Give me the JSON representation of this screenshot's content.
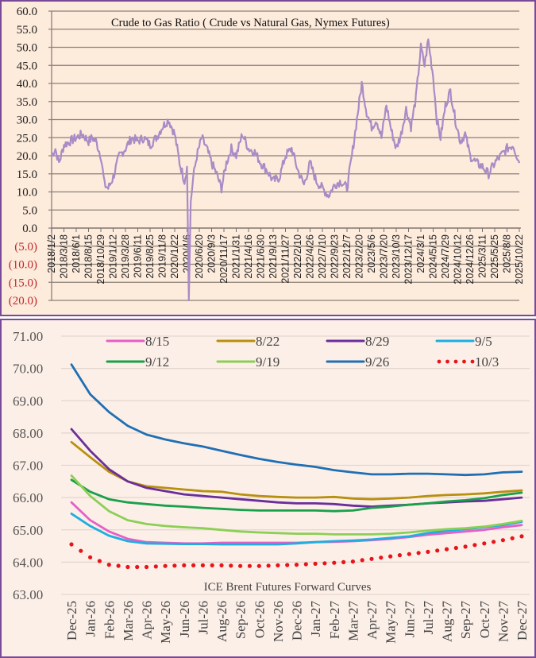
{
  "chart_data": [
    {
      "type": "line",
      "title": "Crude to Gas Ratio ( Crude vs Natural Gas, Nymex Futures)",
      "xlabel": "",
      "ylabel": "",
      "ylim": [
        -20,
        60
      ],
      "grid": true,
      "y_ticks": [
        "60.0",
        "55.0",
        "50.0",
        "45.0",
        "40.0",
        "35.0",
        "30.0",
        "25.0",
        "20.0",
        "15.0",
        "10.0",
        "5.0",
        "0.0",
        "(5.0)",
        "(10.0)",
        "(15.0)",
        "(20.0)"
      ],
      "y_tick_values": [
        60,
        55,
        50,
        45,
        40,
        35,
        30,
        25,
        20,
        15,
        10,
        5,
        0,
        -5,
        -10,
        -15,
        -20
      ],
      "negative_tick_color": "#c0282a",
      "x_ticks": [
        "2018/1/2",
        "2018/3/18",
        "2018/6/1",
        "2018/8/15",
        "2018/10/29",
        "2019/1/12",
        "2019/3/28",
        "2019/6/11",
        "2019/8/25",
        "2019/11/8",
        "2020/1/22",
        "2020/4/6",
        "2020/6/20",
        "2020/9/3",
        "2020/11/17",
        "2021/1/31",
        "2021/4/16",
        "2021/6/30",
        "2021/9/13",
        "2021/11/27",
        "2022/2/10",
        "2022/4/26",
        "2022/7/10",
        "2022/9/23",
        "2022/12/7",
        "2023/2/20",
        "2023/5/6",
        "2023/7/20",
        "2023/10/3",
        "2023/12/17",
        "2024/3/1",
        "2024/5/15",
        "2024/7/29",
        "2024/10/12",
        "2024/12/26",
        "2025/3/11",
        "2025/5/25",
        "2025/8/8",
        "2025/10/22"
      ],
      "series": [
        {
          "name": "Crude to Gas Ratio",
          "color": "#a98bc6",
          "x_index": [
            0,
            0.3,
            0.6,
            1,
            1.5,
            2,
            2.5,
            3,
            3.3,
            3.6,
            4,
            4.3,
            4.6,
            5,
            5.5,
            6,
            6.5,
            7,
            7.5,
            8,
            8.5,
            9,
            9.5,
            10,
            10.4,
            10.8,
            11,
            11.15,
            11.3,
            11.5,
            11.8,
            12.2,
            12.6,
            13,
            13.4,
            13.8,
            14.2,
            14.6,
            15,
            15.5,
            16,
            16.5,
            17,
            17.5,
            18,
            18.5,
            19,
            19.5,
            20,
            20.5,
            21,
            21.5,
            22,
            22.5,
            23,
            23.5,
            24,
            24.4,
            24.8,
            25.2,
            25.6,
            26,
            26.4,
            26.8,
            27.2,
            27.6,
            28,
            28.4,
            28.8,
            29.2,
            29.6,
            30,
            30.3,
            30.6,
            31,
            31.3,
            31.6,
            32,
            32.4,
            32.8,
            33.2,
            33.6,
            34,
            34.5,
            35,
            35.5,
            36,
            36.5,
            37,
            37.5,
            38
          ],
          "values": [
            20,
            22,
            18,
            23,
            24,
            25,
            26,
            24,
            25,
            24,
            20,
            12,
            11,
            14,
            20,
            22,
            25,
            24,
            25,
            23,
            25,
            28,
            30,
            26,
            18,
            13,
            17,
            -20,
            7,
            14,
            20,
            25,
            22,
            18,
            15,
            11,
            18,
            22,
            20,
            26,
            22,
            21,
            18,
            16,
            13,
            14,
            20,
            22,
            16,
            12,
            18,
            13,
            11,
            9,
            12,
            13,
            11,
            20,
            30,
            40,
            32,
            28,
            30,
            25,
            34,
            27,
            22,
            26,
            33,
            28,
            36,
            50,
            45,
            52,
            42,
            30,
            25,
            34,
            38,
            30,
            24,
            26,
            20,
            18,
            17,
            15,
            18,
            20,
            22,
            23,
            18
          ]
        }
      ]
    },
    {
      "type": "line",
      "title": "ICE Brent Futures Forward Curves",
      "xlabel": "",
      "ylabel": "",
      "ylim": [
        63,
        71
      ],
      "grid": true,
      "legend": "top",
      "y_ticks": [
        "71.00",
        "70.00",
        "69.00",
        "68.00",
        "67.00",
        "66.00",
        "65.00",
        "64.00",
        "63.00"
      ],
      "y_tick_values": [
        71,
        70,
        69,
        68,
        67,
        66,
        65,
        64,
        63
      ],
      "categories": [
        "Dec-25",
        "Jan-26",
        "Feb-26",
        "Mar-26",
        "Apr-26",
        "May-26",
        "Jun-26",
        "Jul-26",
        "Aug-26",
        "Sep-26",
        "Oct-26",
        "Nov-26",
        "Dec-26",
        "Jan-27",
        "Feb-27",
        "Mar-27",
        "Apr-27",
        "May-27",
        "Jun-27",
        "Jul-27",
        "Aug-27",
        "Sep-27",
        "Oct-27",
        "Nov-27",
        "Dec-27"
      ],
      "series": [
        {
          "name": "8/15",
          "color": "#e55fc8",
          "style": "solid",
          "values": [
            65.85,
            65.3,
            64.95,
            64.72,
            64.62,
            64.6,
            64.58,
            64.58,
            64.6,
            64.6,
            64.6,
            64.6,
            64.6,
            64.62,
            64.63,
            64.65,
            64.68,
            64.72,
            64.78,
            64.85,
            64.9,
            64.95,
            65.0,
            65.08,
            65.15
          ]
        },
        {
          "name": "8/22",
          "color": "#b8900f",
          "style": "solid",
          "values": [
            67.72,
            67.25,
            66.8,
            66.5,
            66.35,
            66.3,
            66.25,
            66.2,
            66.18,
            66.1,
            66.05,
            66.02,
            66.0,
            66.0,
            66.02,
            65.97,
            65.95,
            65.97,
            66.0,
            66.05,
            66.08,
            66.1,
            66.13,
            66.18,
            66.22
          ]
        },
        {
          "name": "8/29",
          "color": "#6a2e9a",
          "style": "solid",
          "values": [
            68.12,
            67.45,
            66.88,
            66.5,
            66.3,
            66.2,
            66.1,
            66.05,
            66.0,
            65.95,
            65.9,
            65.85,
            65.82,
            65.82,
            65.8,
            65.75,
            65.72,
            65.75,
            65.78,
            65.82,
            65.85,
            65.88,
            65.9,
            65.95,
            66.0
          ]
        },
        {
          "name": "9/5",
          "color": "#1eaee0",
          "style": "solid",
          "values": [
            65.5,
            65.12,
            64.82,
            64.65,
            64.58,
            64.57,
            64.56,
            64.56,
            64.55,
            64.55,
            64.55,
            64.55,
            64.58,
            64.62,
            64.65,
            64.67,
            64.7,
            64.75,
            64.8,
            64.9,
            64.97,
            65.02,
            65.08,
            65.15,
            65.25
          ]
        },
        {
          "name": "9/12",
          "color": "#19a04a",
          "style": "solid",
          "values": [
            66.55,
            66.18,
            65.95,
            65.85,
            65.8,
            65.75,
            65.72,
            65.68,
            65.65,
            65.62,
            65.6,
            65.6,
            65.6,
            65.6,
            65.58,
            65.6,
            65.68,
            65.72,
            65.78,
            65.82,
            65.88,
            65.92,
            65.98,
            66.08,
            66.15
          ]
        },
        {
          "name": "9/19",
          "color": "#8ccf55",
          "style": "solid",
          "values": [
            66.68,
            66.05,
            65.58,
            65.3,
            65.18,
            65.12,
            65.08,
            65.05,
            65.0,
            64.95,
            64.92,
            64.9,
            64.88,
            64.88,
            64.86,
            64.86,
            64.86,
            64.88,
            64.92,
            64.98,
            65.02,
            65.05,
            65.1,
            65.18,
            65.28
          ]
        },
        {
          "name": "9/26",
          "color": "#1f6fb4",
          "style": "solid",
          "values": [
            70.12,
            69.2,
            68.65,
            68.22,
            67.95,
            67.8,
            67.68,
            67.58,
            67.45,
            67.32,
            67.2,
            67.1,
            67.02,
            66.95,
            66.85,
            66.78,
            66.72,
            66.72,
            66.74,
            66.74,
            66.72,
            66.7,
            66.72,
            66.78,
            66.8
          ]
        },
        {
          "name": "10/3",
          "color": "#e8141a",
          "style": "dotted",
          "values": [
            64.55,
            64.15,
            63.92,
            63.85,
            63.85,
            63.88,
            63.9,
            63.9,
            63.9,
            63.88,
            63.88,
            63.9,
            63.92,
            63.95,
            63.98,
            64.02,
            64.1,
            64.18,
            64.25,
            64.32,
            64.4,
            64.48,
            64.58,
            64.68,
            64.8
          ]
        }
      ]
    }
  ]
}
